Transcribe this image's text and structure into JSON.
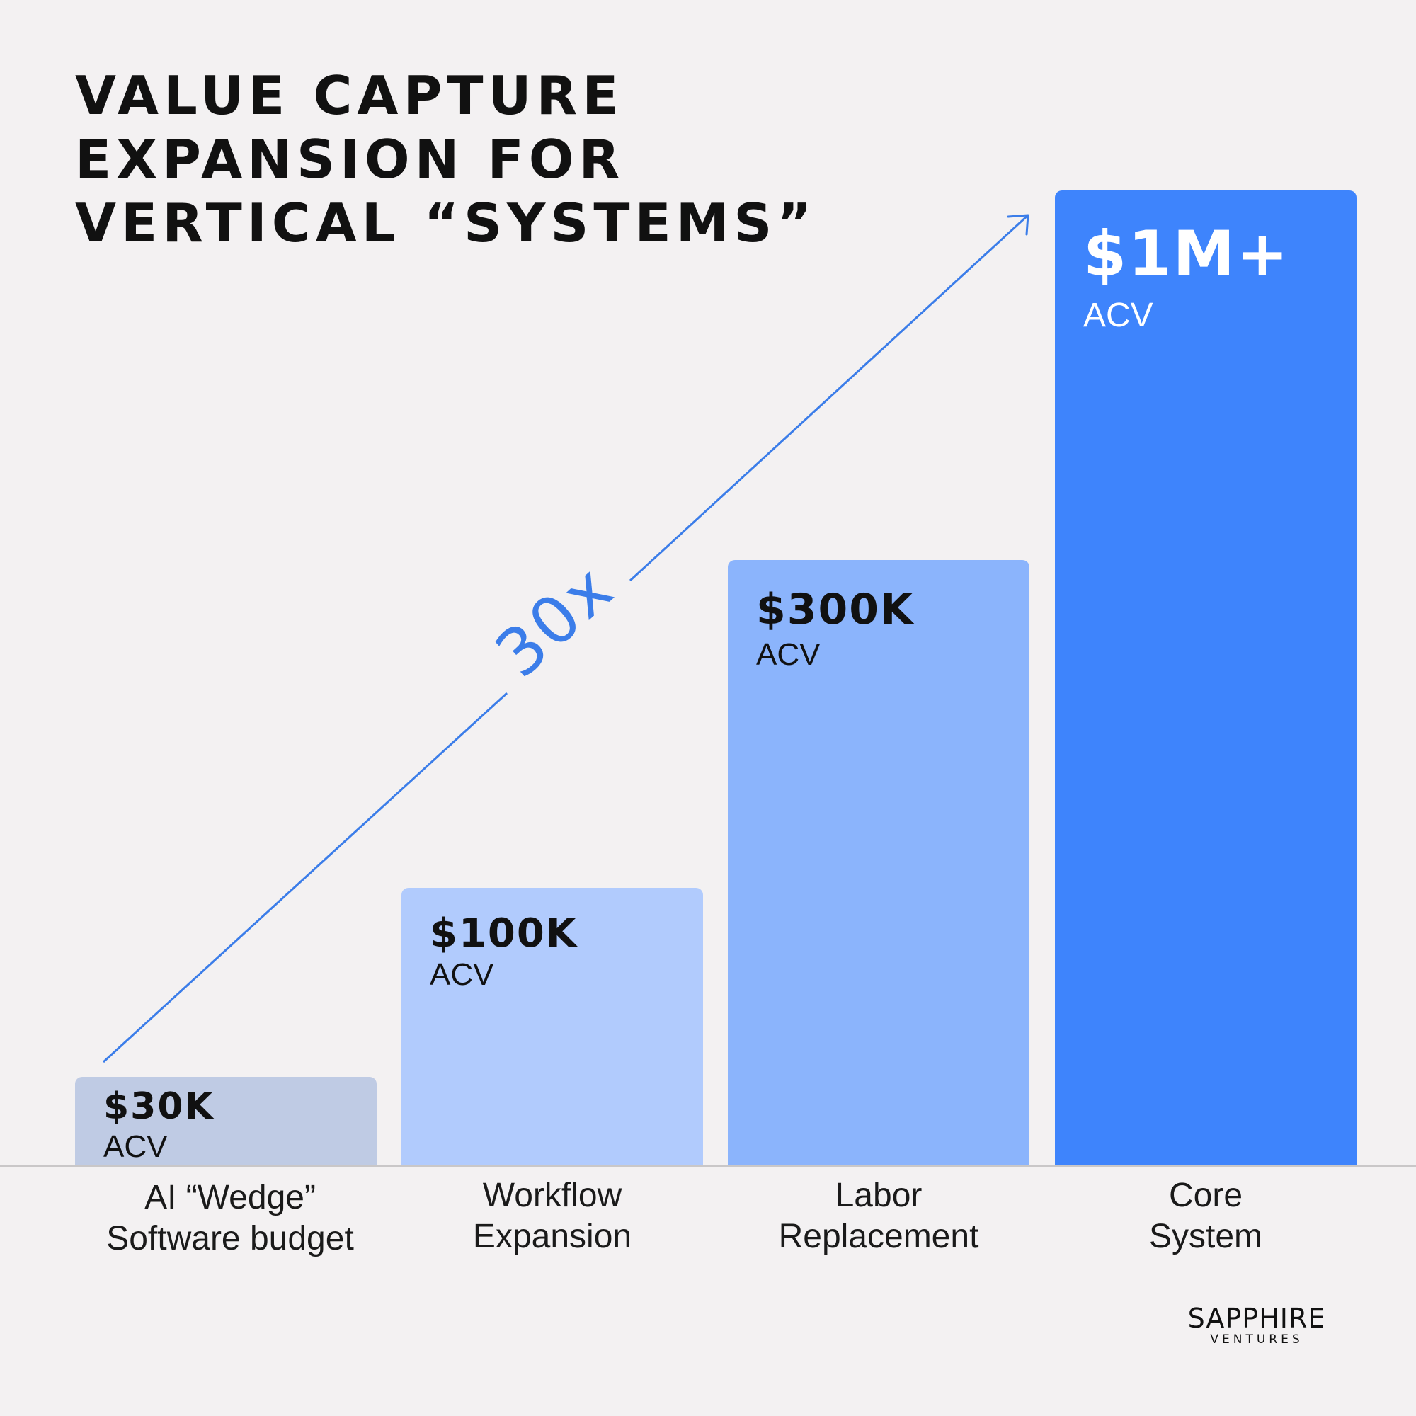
{
  "title": [
    "VALUE CAPTURE",
    "EXPANSION FOR",
    "VERTICAL “SYSTEMS”"
  ],
  "colors": {
    "background": "#f3f1f2",
    "arrow": "#3b7de9",
    "bar_1": "#bfcbe4",
    "bar_2": "#b1cbfd",
    "bar_3": "#8bb4fc",
    "bar_4": "#3e84fc"
  },
  "chart_data": {
    "type": "bar",
    "categories": [
      "AI “Wedge” Software budget",
      "Workflow Expansion",
      "Labor Replacement",
      "Core System"
    ],
    "category_lines": [
      [
        "AI “Wedge”",
        "Software budget"
      ],
      [
        "Workflow",
        "Expansion"
      ],
      [
        "Labor",
        "Replacement"
      ],
      [
        "Core",
        "System"
      ]
    ],
    "values": [
      30000,
      100000,
      300000,
      1000000
    ],
    "value_labels": [
      "$30K",
      "$100K",
      "$300K",
      "$1M+"
    ],
    "unit_label": "ACV",
    "scale": "step-up (not proportional)",
    "annotation": {
      "text": "30x",
      "style": "diagonal arrow from first bar to last bar"
    },
    "grid": false,
    "legend": "none"
  },
  "logo": {
    "name": "SAPPHIRE",
    "sub": "VENTURES"
  }
}
